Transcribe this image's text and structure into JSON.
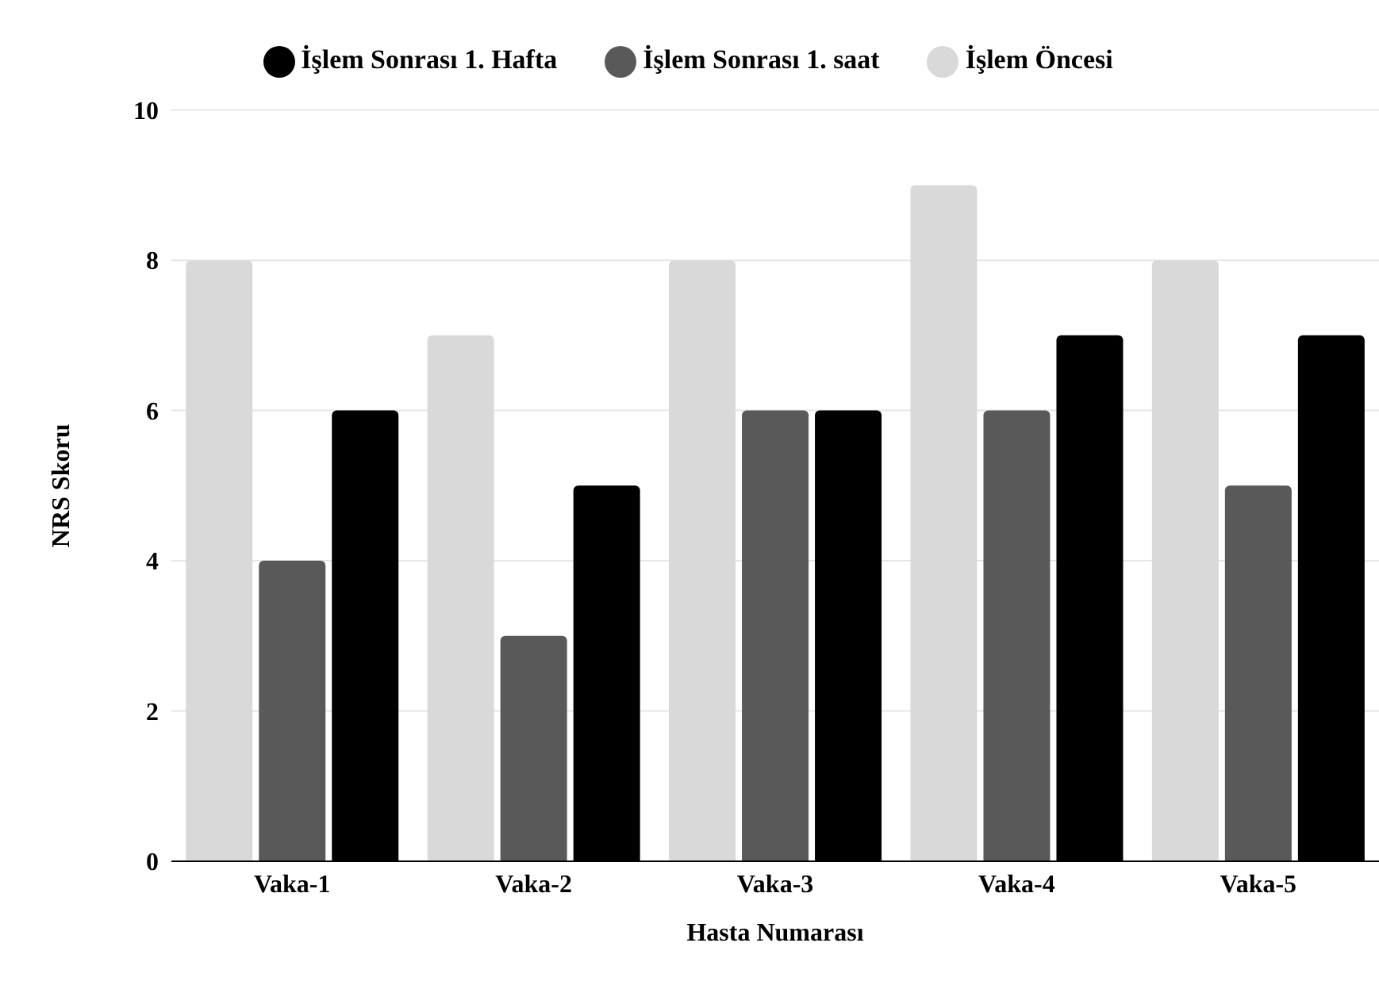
{
  "chart_data": {
    "type": "bar",
    "xlabel": "Hasta Numarası",
    "ylabel": "NRS Skoru",
    "categories": [
      "Vaka-1",
      "Vaka-2",
      "Vaka-3",
      "Vaka-4",
      "Vaka-5"
    ],
    "series": [
      {
        "name": "İşlem Öncesi",
        "color": "#d9d9d9",
        "values": [
          8,
          7,
          8,
          9,
          8
        ]
      },
      {
        "name": "İşlem Sonrası 1. saat",
        "color": "#595959",
        "values": [
          4,
          3,
          6,
          6,
          5
        ]
      },
      {
        "name": "İşlem Sonrası 1. Hafta",
        "color": "#000000",
        "values": [
          6,
          5,
          6,
          7,
          7
        ]
      }
    ],
    "ylim": [
      0,
      10
    ],
    "yticks": [
      0,
      2,
      4,
      6,
      8,
      10
    ],
    "grid": "y",
    "legend": "top"
  }
}
